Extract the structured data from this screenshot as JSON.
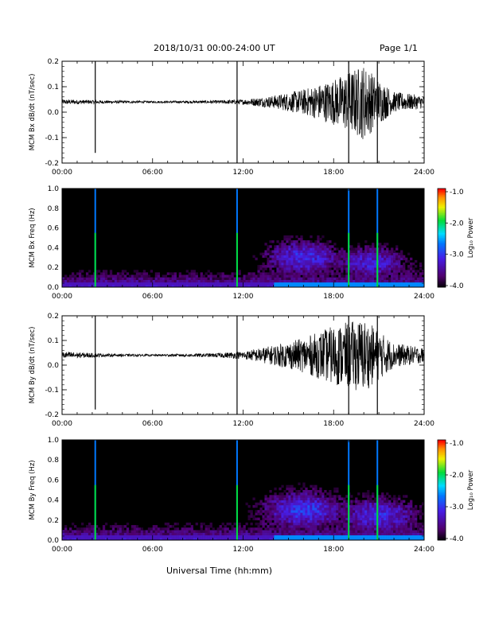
{
  "header": {
    "title": "2018/10/31  00:00-24:00 UT",
    "page": "Page 1/1"
  },
  "x_axis": {
    "label": "Universal Time (hh:mm)",
    "range_hours": [
      0,
      24
    ],
    "tick_labels": [
      "00:00",
      "06:00",
      "12:00",
      "18:00",
      "24:00"
    ]
  },
  "colorbar": {
    "label": "Log₁₀ Power",
    "range": [
      -4.0,
      -1.0
    ],
    "tick_labels": [
      "-1.0",
      "-2.0",
      "-3.0",
      "-4.0"
    ],
    "colormap": "rainbow (black-purple-blue-cyan-green-yellow-red)"
  },
  "chart_data": [
    {
      "type": "line",
      "ylabel": "MCM Bx dB/dt (nT/sec)",
      "xlim": [
        0,
        24
      ],
      "ylim": [
        -0.2,
        0.2
      ],
      "y_tick_labels": [
        "0.2",
        "0.1",
        "0.0",
        "-0.1",
        "-0.2"
      ],
      "baseline": 0.04,
      "spikes": [
        {
          "x": 2.2,
          "y_min": -0.16,
          "y_max": 0.2
        },
        {
          "x": 11.6,
          "y_min": -0.2,
          "y_max": 0.2
        },
        {
          "x": 19.0,
          "y_min": -0.2,
          "y_max": 0.2
        },
        {
          "x": 20.9,
          "y_min": -0.2,
          "y_max": 0.2
        }
      ],
      "activity_envelope": [
        {
          "x": 0,
          "amp": 0.01
        },
        {
          "x": 3,
          "amp": 0.006
        },
        {
          "x": 6,
          "amp": 0.004
        },
        {
          "x": 10,
          "amp": 0.006
        },
        {
          "x": 12,
          "amp": 0.01
        },
        {
          "x": 14,
          "amp": 0.025
        },
        {
          "x": 16,
          "amp": 0.05
        },
        {
          "x": 18,
          "amp": 0.09
        },
        {
          "x": 20,
          "amp": 0.15
        },
        {
          "x": 21,
          "amp": 0.09
        },
        {
          "x": 22,
          "amp": 0.04
        },
        {
          "x": 24,
          "amp": 0.025
        }
      ]
    },
    {
      "type": "heatmap",
      "ylabel": "MCM Bx Freq (Hz)",
      "xlim": [
        0,
        24
      ],
      "ylim": [
        0.0,
        1.0
      ],
      "y_tick_labels": [
        "1.0",
        "0.8",
        "0.6",
        "0.4",
        "0.2",
        "0.0"
      ],
      "zlim": [
        -4.0,
        -1.0
      ],
      "vertical_lines_hours": [
        2.2,
        11.6,
        19.0,
        20.9
      ],
      "activity_centers": [
        {
          "x": 16.0,
          "freq": 0.3,
          "level": -3.1
        },
        {
          "x": 20.5,
          "freq": 0.25,
          "level": -3.2
        }
      ]
    },
    {
      "type": "line",
      "ylabel": "MCM By dB/dt (nT/sec)",
      "xlim": [
        0,
        24
      ],
      "ylim": [
        -0.2,
        0.2
      ],
      "y_tick_labels": [
        "0.2",
        "0.1",
        "0.0",
        "-0.1",
        "-0.2"
      ],
      "baseline": 0.04,
      "spikes": [
        {
          "x": 2.2,
          "y_min": -0.18,
          "y_max": 0.2
        },
        {
          "x": 11.6,
          "y_min": -0.2,
          "y_max": 0.2
        },
        {
          "x": 19.0,
          "y_min": -0.2,
          "y_max": 0.2
        },
        {
          "x": 20.9,
          "y_min": -0.2,
          "y_max": 0.2
        }
      ],
      "activity_envelope": [
        {
          "x": 0,
          "amp": 0.015
        },
        {
          "x": 3,
          "amp": 0.006
        },
        {
          "x": 6,
          "amp": 0.004
        },
        {
          "x": 10,
          "amp": 0.008
        },
        {
          "x": 12,
          "amp": 0.015
        },
        {
          "x": 14,
          "amp": 0.04
        },
        {
          "x": 16,
          "amp": 0.07
        },
        {
          "x": 18,
          "amp": 0.12
        },
        {
          "x": 20,
          "amp": 0.15
        },
        {
          "x": 21,
          "amp": 0.1
        },
        {
          "x": 22,
          "amp": 0.05
        },
        {
          "x": 24,
          "amp": 0.03
        }
      ]
    },
    {
      "type": "heatmap",
      "ylabel": "MCM By Freq (Hz)",
      "xlim": [
        0,
        24
      ],
      "ylim": [
        0.0,
        1.0
      ],
      "y_tick_labels": [
        "1.0",
        "0.8",
        "0.6",
        "0.4",
        "0.2",
        "0.0"
      ],
      "zlim": [
        -4.0,
        -1.0
      ],
      "vertical_lines_hours": [
        2.2,
        11.6,
        19.0,
        20.9
      ],
      "activity_centers": [
        {
          "x": 16.0,
          "freq": 0.3,
          "level": -3.0
        },
        {
          "x": 21.0,
          "freq": 0.25,
          "level": -3.1
        }
      ]
    }
  ]
}
